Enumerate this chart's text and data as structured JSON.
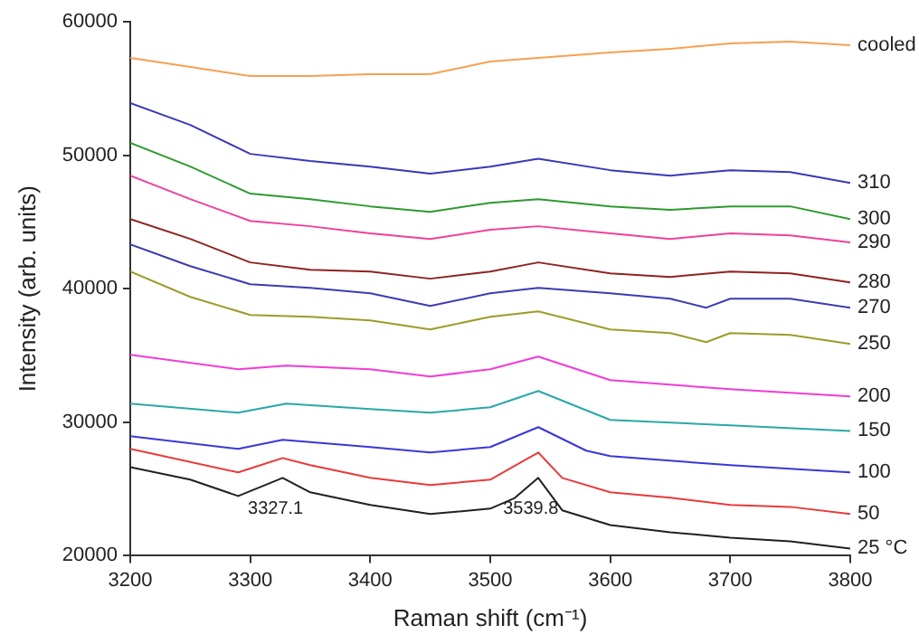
{
  "chart_data": {
    "type": "line",
    "xlabel": "Raman shift (cm⁻¹)",
    "ylabel": "Intensity (arb. units)",
    "xlim": [
      3200,
      3800
    ],
    "xticks": [
      3200,
      3300,
      3400,
      3500,
      3600,
      3700,
      3800
    ],
    "ylim": [
      20000,
      60000
    ],
    "yticks": [
      20000,
      30000,
      40000,
      50000,
      60000
    ],
    "series": [
      {
        "name": "25 °C",
        "color": "#202020",
        "x": [
          3200,
          3250,
          3290,
          3327,
          3350,
          3400,
          3450,
          3500,
          3520,
          3540,
          3560,
          3600,
          3650,
          3700,
          3750,
          3800
        ],
        "values": [
          26640,
          25700,
          24470,
          25830,
          24750,
          23800,
          23120,
          23530,
          24300,
          25830,
          23400,
          22300,
          21760,
          21350,
          21080,
          20540
        ]
      },
      {
        "name": "50",
        "color": "#e83a3a",
        "x": [
          3200,
          3290,
          3327,
          3350,
          3400,
          3450,
          3500,
          3540,
          3560,
          3600,
          3650,
          3700,
          3750,
          3800
        ],
        "values": [
          28000,
          26240,
          27320,
          26780,
          25830,
          25290,
          25700,
          27730,
          25830,
          24750,
          24340,
          23800,
          23660,
          23120
        ]
      },
      {
        "name": "100",
        "color": "#3838d8",
        "x": [
          3200,
          3290,
          3327,
          3400,
          3450,
          3500,
          3540,
          3580,
          3600,
          3700,
          3800
        ],
        "values": [
          28950,
          28000,
          28680,
          28140,
          27730,
          28140,
          29630,
          27870,
          27460,
          26780,
          26240
        ]
      },
      {
        "name": "150",
        "color": "#2aa8a8",
        "x": [
          3200,
          3290,
          3330,
          3400,
          3450,
          3500,
          3540,
          3600,
          3700,
          3800
        ],
        "values": [
          31390,
          30710,
          31390,
          30980,
          30710,
          31120,
          32340,
          30170,
          29760,
          29350
        ]
      },
      {
        "name": "200",
        "color": "#f03cd8",
        "x": [
          3200,
          3290,
          3330,
          3400,
          3450,
          3500,
          3540,
          3600,
          3700,
          3800
        ],
        "values": [
          35050,
          33970,
          34240,
          33970,
          33420,
          33970,
          34920,
          33150,
          32470,
          31930
        ]
      },
      {
        "name": "250",
        "color": "#9c9c2a",
        "x": [
          3200,
          3250,
          3300,
          3350,
          3400,
          3450,
          3500,
          3540,
          3600,
          3650,
          3680,
          3700,
          3750,
          3800
        ],
        "values": [
          41290,
          39390,
          38030,
          37900,
          37630,
          36950,
          37900,
          38300,
          36950,
          36680,
          36000,
          36680,
          36540,
          35860
        ]
      },
      {
        "name": "270",
        "color": "#3c3cb0",
        "x": [
          3200,
          3250,
          3300,
          3350,
          3400,
          3450,
          3500,
          3540,
          3600,
          3650,
          3680,
          3700,
          3750,
          3800
        ],
        "values": [
          43320,
          41690,
          40340,
          40070,
          39660,
          38710,
          39660,
          40070,
          39660,
          39250,
          38580,
          39250,
          39250,
          38580
        ]
      },
      {
        "name": "280",
        "color": "#8e2222",
        "x": [
          3200,
          3250,
          3300,
          3350,
          3400,
          3450,
          3500,
          3540,
          3600,
          3650,
          3700,
          3750,
          3800
        ],
        "values": [
          45220,
          43730,
          41970,
          41420,
          41290,
          40750,
          41290,
          41970,
          41150,
          40880,
          41290,
          41150,
          40470
        ]
      },
      {
        "name": "290",
        "color": "#f0409a",
        "x": [
          3200,
          3250,
          3300,
          3350,
          3400,
          3450,
          3500,
          3540,
          3600,
          3650,
          3700,
          3750,
          3800
        ],
        "values": [
          48470,
          46710,
          45080,
          44680,
          44140,
          43730,
          44410,
          44680,
          44140,
          43730,
          44140,
          44000,
          43460
        ]
      },
      {
        "name": "300",
        "color": "#2e9a2e",
        "x": [
          3200,
          3250,
          3300,
          3350,
          3400,
          3450,
          3500,
          3540,
          3600,
          3650,
          3700,
          3750,
          3800
        ],
        "values": [
          50920,
          49150,
          47120,
          46710,
          46170,
          45760,
          46440,
          46710,
          46170,
          45900,
          46170,
          46170,
          45220
        ]
      },
      {
        "name": "310",
        "color": "#3838b8",
        "x": [
          3200,
          3250,
          3300,
          3350,
          3400,
          3450,
          3500,
          3540,
          3600,
          3650,
          3700,
          3750,
          3800
        ],
        "values": [
          53900,
          52270,
          50100,
          49560,
          49150,
          48610,
          49150,
          49740,
          48880,
          48470,
          48880,
          48740,
          47930
        ]
      },
      {
        "name": "cooled",
        "color": "#f8a050",
        "x": [
          3200,
          3250,
          3300,
          3350,
          3400,
          3450,
          3500,
          3540,
          3600,
          3650,
          3700,
          3750,
          3800
        ],
        "values": [
          57290,
          56610,
          55930,
          55930,
          56070,
          56070,
          57020,
          57290,
          57690,
          57970,
          58370,
          58510,
          58240
        ]
      }
    ],
    "annotations": [
      {
        "text": "3327.1",
        "x": 3327.1,
        "y": 25830
      },
      {
        "text": "3539.8",
        "x": 3539.8,
        "y": 25830
      }
    ]
  }
}
